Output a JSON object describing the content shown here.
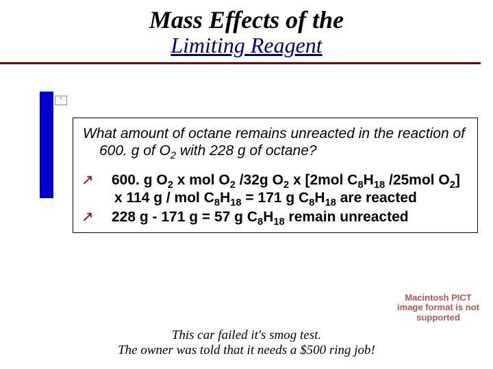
{
  "title": {
    "main": "Mass Effects of the",
    "sub": "Limiting Reagent"
  },
  "colors": {
    "hr": "#800000",
    "subtitle": "#000080",
    "bluebar": "#0000cc",
    "arrow": "#800000",
    "pict_text": "#b85450"
  },
  "question": {
    "text_pre": "What amount of octane remains unreacted in the reaction of 600. g of O",
    "sub1": "2",
    "text_mid": " with 228 g of octane?"
  },
  "bullets": [
    {
      "parts": [
        {
          "t": "600. g O"
        },
        {
          "sub": "2"
        },
        {
          "t": " x mol O"
        },
        {
          "sub": "2"
        },
        {
          "t": " /32g O"
        },
        {
          "sub": "2"
        },
        {
          "t": " x [2mol C"
        },
        {
          "sub": "8"
        },
        {
          "t": "H"
        },
        {
          "sub": "18"
        },
        {
          "t": " /25mol O"
        },
        {
          "sub": "2"
        },
        {
          "t": "] x 114 g / mol  C"
        },
        {
          "sub": "8"
        },
        {
          "t": "H"
        },
        {
          "sub": "18"
        },
        {
          "t": "  =  171  g C"
        },
        {
          "sub": "8"
        },
        {
          "t": "H"
        },
        {
          "sub": "18"
        },
        {
          "t": "  are reacted"
        }
      ]
    },
    {
      "parts": [
        {
          "t": "228 g - 171 g = 57 g C"
        },
        {
          "sub": "8"
        },
        {
          "t": "H"
        },
        {
          "sub": "18"
        },
        {
          "t": "  remain unreacted"
        }
      ]
    }
  ],
  "arrow_glyph": "↗",
  "caption": {
    "line1": "This car failed it's smog test.",
    "line2": "The owner was told that it needs a $500 ring job!"
  },
  "pict_placeholder": "Macintosh PICT image format is not supported",
  "broken_img_label": "x"
}
